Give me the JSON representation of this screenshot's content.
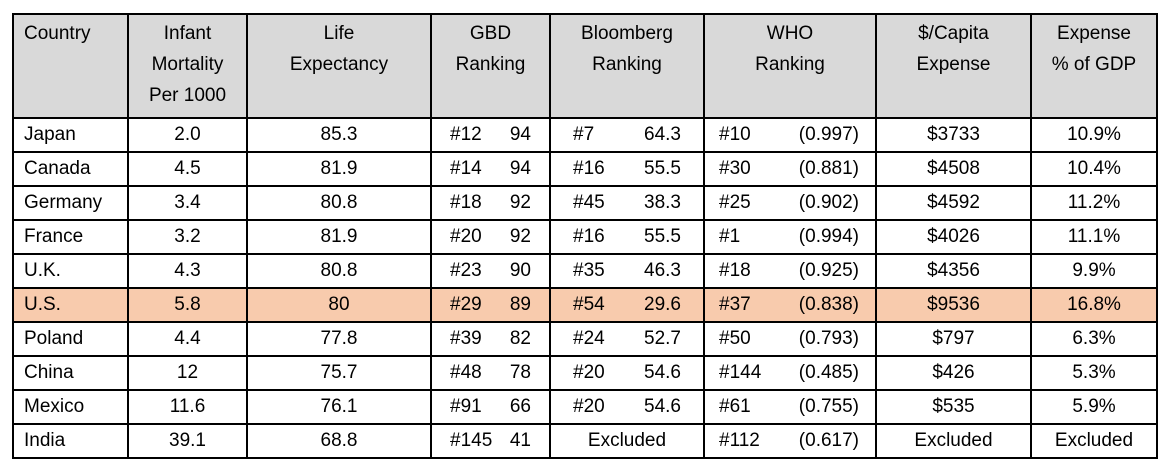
{
  "colors": {
    "header_bg": "#d9d9d9",
    "highlight_row_bg": "#f8cbad",
    "border": "#000000",
    "text": "#000000",
    "page_bg": "#ffffff"
  },
  "chart_data": {
    "type": "table",
    "highlighted_row": "U.S.",
    "columns": [
      {
        "id": "country",
        "label": "Country"
      },
      {
        "id": "infant_mortality",
        "label": "Infant\nMortality\nPer 1000"
      },
      {
        "id": "life_expectancy",
        "label": "Life\nExpectancy"
      },
      {
        "id": "gbd_ranking",
        "label": "GBD\nRanking"
      },
      {
        "id": "bloomberg_ranking",
        "label": "Bloomberg\nRanking"
      },
      {
        "id": "who_ranking",
        "label": "WHO\nRanking"
      },
      {
        "id": "per_capita_expense",
        "label": "$/Capita\nExpense"
      },
      {
        "id": "expense_pct_of_gdp",
        "label": "Expense\n% of GDP"
      }
    ],
    "rows": [
      {
        "country": "Japan",
        "infant_mortality_per_1000": "2.0",
        "life_expectancy": "85.3",
        "gbd_ranking": {
          "rank": "#12",
          "score": "94"
        },
        "bloomberg_ranking": {
          "rank": "#7",
          "score": "64.3"
        },
        "who_ranking": {
          "rank": "#10",
          "score": "(0.997)"
        },
        "per_capita_expense": "$3733",
        "expense_pct_of_gdp": "10.9%",
        "highlighted": false
      },
      {
        "country": "Canada",
        "infant_mortality_per_1000": "4.5",
        "life_expectancy": "81.9",
        "gbd_ranking": {
          "rank": "#14",
          "score": "94"
        },
        "bloomberg_ranking": {
          "rank": "#16",
          "score": "55.5"
        },
        "who_ranking": {
          "rank": "#30",
          "score": "(0.881)"
        },
        "per_capita_expense": "$4508",
        "expense_pct_of_gdp": "10.4%",
        "highlighted": false
      },
      {
        "country": "Germany",
        "infant_mortality_per_1000": "3.4",
        "life_expectancy": "80.8",
        "gbd_ranking": {
          "rank": "#18",
          "score": "92"
        },
        "bloomberg_ranking": {
          "rank": "#45",
          "score": "38.3"
        },
        "who_ranking": {
          "rank": "#25",
          "score": "(0.902)"
        },
        "per_capita_expense": "$4592",
        "expense_pct_of_gdp": "11.2%",
        "highlighted": false
      },
      {
        "country": "France",
        "infant_mortality_per_1000": "3.2",
        "life_expectancy": "81.9",
        "gbd_ranking": {
          "rank": "#20",
          "score": "92"
        },
        "bloomberg_ranking": {
          "rank": "#16",
          "score": "55.5"
        },
        "who_ranking": {
          "rank": "#1",
          "score": "(0.994)"
        },
        "per_capita_expense": "$4026",
        "expense_pct_of_gdp": "11.1%",
        "highlighted": false
      },
      {
        "country": "U.K.",
        "infant_mortality_per_1000": "4.3",
        "life_expectancy": "80.8",
        "gbd_ranking": {
          "rank": "#23",
          "score": "90"
        },
        "bloomberg_ranking": {
          "rank": "#35",
          "score": "46.3"
        },
        "who_ranking": {
          "rank": "#18",
          "score": "(0.925)"
        },
        "per_capita_expense": "$4356",
        "expense_pct_of_gdp": "9.9%",
        "highlighted": false
      },
      {
        "country": "U.S.",
        "infant_mortality_per_1000": "5.8",
        "life_expectancy": "80",
        "gbd_ranking": {
          "rank": "#29",
          "score": "89"
        },
        "bloomberg_ranking": {
          "rank": "#54",
          "score": "29.6"
        },
        "who_ranking": {
          "rank": "#37",
          "score": "(0.838)"
        },
        "per_capita_expense": "$9536",
        "expense_pct_of_gdp": "16.8%",
        "highlighted": true
      },
      {
        "country": "Poland",
        "infant_mortality_per_1000": "4.4",
        "life_expectancy": "77.8",
        "gbd_ranking": {
          "rank": "#39",
          "score": "82"
        },
        "bloomberg_ranking": {
          "rank": "#24",
          "score": "52.7"
        },
        "who_ranking": {
          "rank": "#50",
          "score": "(0.793)"
        },
        "per_capita_expense": "$797",
        "expense_pct_of_gdp": "6.3%",
        "highlighted": false
      },
      {
        "country": "China",
        "infant_mortality_per_1000": "12",
        "life_expectancy": "75.7",
        "gbd_ranking": {
          "rank": "#48",
          "score": "78"
        },
        "bloomberg_ranking": {
          "rank": "#20",
          "score": "54.6"
        },
        "who_ranking": {
          "rank": "#144",
          "score": "(0.485)"
        },
        "per_capita_expense": "$426",
        "expense_pct_of_gdp": "5.3%",
        "highlighted": false
      },
      {
        "country": "Mexico",
        "infant_mortality_per_1000": "11.6",
        "life_expectancy": "76.1",
        "gbd_ranking": {
          "rank": "#91",
          "score": "66"
        },
        "bloomberg_ranking": {
          "rank": "#20",
          "score": "54.6"
        },
        "who_ranking": {
          "rank": "#61",
          "score": "(0.755)"
        },
        "per_capita_expense": "$535",
        "expense_pct_of_gdp": "5.9%",
        "highlighted": false
      },
      {
        "country": "India",
        "infant_mortality_per_1000": "39.1",
        "life_expectancy": "68.8",
        "gbd_ranking": {
          "rank": "#145",
          "score": "41"
        },
        "bloomberg_ranking": {
          "text": "Excluded"
        },
        "who_ranking": {
          "rank": "#112",
          "score": "(0.617)"
        },
        "per_capita_expense": "Excluded",
        "expense_pct_of_gdp": "Excluded",
        "highlighted": false
      }
    ]
  }
}
